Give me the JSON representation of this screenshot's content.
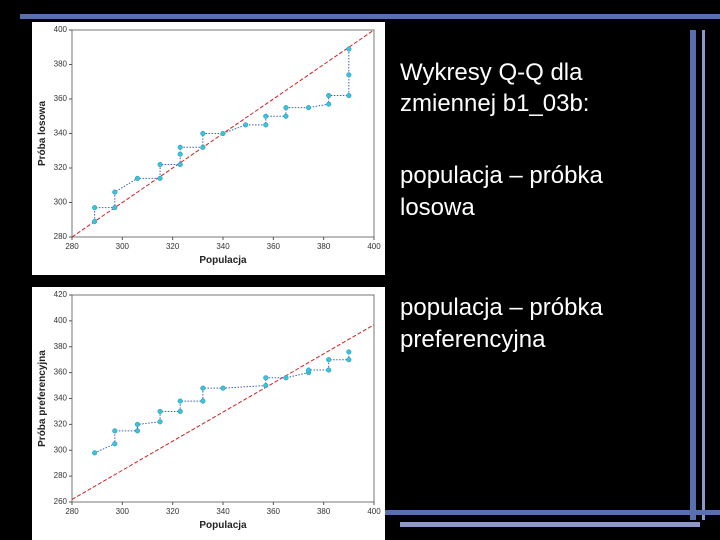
{
  "chart_data": [
    {
      "type": "scatter",
      "xlabel": "Populacja",
      "ylabel": "Próba losowa",
      "xlim": [
        280,
        400
      ],
      "ylim": [
        280,
        400
      ],
      "xticks": [
        280,
        300,
        320,
        340,
        360,
        380,
        400
      ],
      "yticks": [
        280,
        300,
        320,
        340,
        360,
        380,
        400
      ],
      "color": "#3cc3dc",
      "line_color": "#d02020",
      "x": [
        289,
        289,
        297,
        297,
        306,
        315,
        315,
        323,
        323,
        323,
        332,
        332,
        340,
        349,
        357,
        357,
        365,
        365,
        374,
        382,
        382,
        390,
        390,
        390
      ],
      "values": [
        289,
        297,
        297,
        306,
        314,
        314,
        322,
        322,
        328,
        332,
        332,
        340,
        340,
        345,
        345,
        350,
        350,
        355,
        355,
        357,
        362,
        362,
        374,
        389
      ],
      "reference_line": {
        "x": [
          280,
          400
        ],
        "y": [
          280,
          400
        ]
      }
    },
    {
      "type": "scatter",
      "xlabel": "Populacja",
      "ylabel": "Próba preferencyjna",
      "xlim": [
        280,
        400
      ],
      "ylim": [
        260,
        420
      ],
      "xticks": [
        280,
        300,
        320,
        340,
        360,
        380,
        400
      ],
      "yticks": [
        260,
        280,
        300,
        320,
        340,
        360,
        380,
        400,
        420
      ],
      "color": "#3cc3dc",
      "line_color": "#d02020",
      "x": [
        289,
        297,
        297,
        306,
        306,
        315,
        315,
        323,
        323,
        332,
        332,
        340,
        357,
        357,
        365,
        374,
        374,
        382,
        382,
        390,
        390
      ],
      "values": [
        298,
        305,
        315,
        315,
        320,
        322,
        330,
        330,
        338,
        338,
        348,
        348,
        350,
        356,
        356,
        360,
        362,
        362,
        370,
        370,
        376
      ],
      "reference_line": {
        "x": [
          280,
          400
        ],
        "y": [
          262,
          397
        ]
      }
    }
  ],
  "slide": {
    "heading": [
      "Wykresy Q-Q dla",
      "zmiennej b1_03b:"
    ],
    "items": [
      [
        "populacja – próbka",
        "losowa"
      ],
      [
        "populacja – próbka",
        "preferencyjna"
      ]
    ]
  }
}
